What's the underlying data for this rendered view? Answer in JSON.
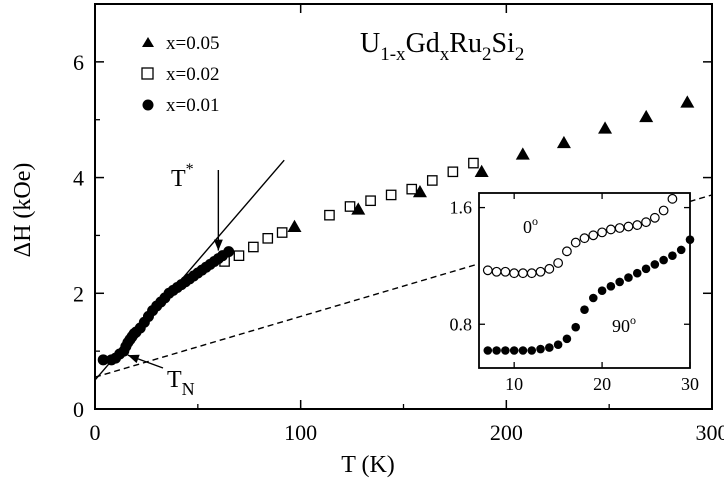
{
  "chart_data": [
    {
      "type": "scatter",
      "title": "U1-xGdxRu2Si2",
      "title_parts": {
        "a": "U",
        "a_sub": "1-x",
        "b": "Gd",
        "b_sub": "x",
        "c": "Ru",
        "c_sub": "2",
        "d": "Si",
        "d_sub": "2"
      },
      "xlabel": "T (K)",
      "ylabel": "ΔH (kOe)",
      "xlim": [
        0,
        300
      ],
      "ylim": [
        0,
        7
      ],
      "xticks": [
        0,
        100,
        200,
        300
      ],
      "yticks": [
        0,
        2,
        4,
        6
      ],
      "grid": false,
      "legend_position": "top-left",
      "series": [
        {
          "name": "x=0.05",
          "marker": "filled-triangle",
          "x": [
            97,
            128,
            158,
            188,
            208,
            228,
            248,
            268,
            288
          ],
          "y": [
            3.15,
            3.45,
            3.75,
            4.1,
            4.4,
            4.6,
            4.85,
            5.05,
            5.3
          ]
        },
        {
          "name": "x=0.02",
          "marker": "open-square",
          "x": [
            63,
            70,
            77,
            84,
            91,
            114,
            124,
            134,
            144,
            154,
            164,
            174,
            184
          ],
          "y": [
            2.55,
            2.65,
            2.8,
            2.95,
            3.05,
            3.35,
            3.5,
            3.6,
            3.7,
            3.8,
            3.95,
            4.1,
            4.25
          ]
        },
        {
          "name": "x=0.01",
          "marker": "filled-circle",
          "x": [
            4,
            8,
            10,
            12,
            14,
            15,
            16,
            17,
            18,
            19,
            20,
            22,
            24,
            26,
            28,
            30,
            32,
            34,
            36,
            38,
            40,
            42,
            44,
            46,
            48,
            50,
            52,
            54,
            56,
            58,
            60,
            62,
            65
          ],
          "y": [
            0.85,
            0.85,
            0.88,
            0.95,
            1.0,
            1.08,
            1.15,
            1.2,
            1.25,
            1.3,
            1.33,
            1.4,
            1.5,
            1.6,
            1.7,
            1.78,
            1.85,
            1.92,
            2.0,
            2.05,
            2.1,
            2.15,
            2.2,
            2.25,
            2.3,
            2.35,
            2.4,
            2.45,
            2.5,
            2.55,
            2.6,
            2.65,
            2.72
          ]
        }
      ],
      "lines": [
        {
          "style": "solid",
          "x": [
            0,
            92
          ],
          "y": [
            0.5,
            4.3
          ]
        },
        {
          "style": "dashed",
          "x": [
            0,
            300
          ],
          "y": [
            0.55,
            3.7
          ]
        }
      ],
      "annotations": [
        {
          "text": "T*",
          "text_main": "T",
          "text_sup": "*",
          "arrow_to": [
            59,
            2.6
          ]
        },
        {
          "text": "TN",
          "text_main": "T",
          "text_sub": "N",
          "arrow_to": [
            14,
            1.0
          ]
        }
      ]
    },
    {
      "type": "scatter",
      "inset": true,
      "xlim": [
        6,
        30
      ],
      "ylim": [
        0.5,
        1.7
      ],
      "xticks": [
        10,
        20,
        30
      ],
      "yticks": [
        0.8,
        1.6
      ],
      "ytick_labels": [
        "0.8",
        "1.6"
      ],
      "grid": false,
      "series": [
        {
          "name": "0°",
          "label_main": "0",
          "label_sup": "o",
          "marker": "open-circle",
          "x": [
            7,
            8,
            9,
            10,
            11,
            12,
            13,
            14,
            15,
            16,
            17,
            18,
            19,
            20,
            21,
            22,
            23,
            24,
            25,
            26,
            27,
            28
          ],
          "y": [
            1.17,
            1.16,
            1.16,
            1.15,
            1.15,
            1.15,
            1.16,
            1.18,
            1.22,
            1.3,
            1.36,
            1.39,
            1.41,
            1.43,
            1.45,
            1.46,
            1.47,
            1.48,
            1.5,
            1.53,
            1.58,
            1.66
          ]
        },
        {
          "name": "90°",
          "label_main": "90",
          "label_sup": "o",
          "marker": "filled-circle",
          "x": [
            7,
            8,
            9,
            10,
            11,
            12,
            13,
            14,
            15,
            16,
            17,
            18,
            19,
            20,
            21,
            22,
            23,
            24,
            25,
            26,
            27,
            28,
            29,
            30
          ],
          "y": [
            0.62,
            0.62,
            0.62,
            0.62,
            0.62,
            0.62,
            0.63,
            0.64,
            0.66,
            0.7,
            0.78,
            0.9,
            0.98,
            1.03,
            1.06,
            1.09,
            1.12,
            1.15,
            1.18,
            1.21,
            1.24,
            1.27,
            1.31,
            1.38
          ]
        }
      ]
    }
  ]
}
